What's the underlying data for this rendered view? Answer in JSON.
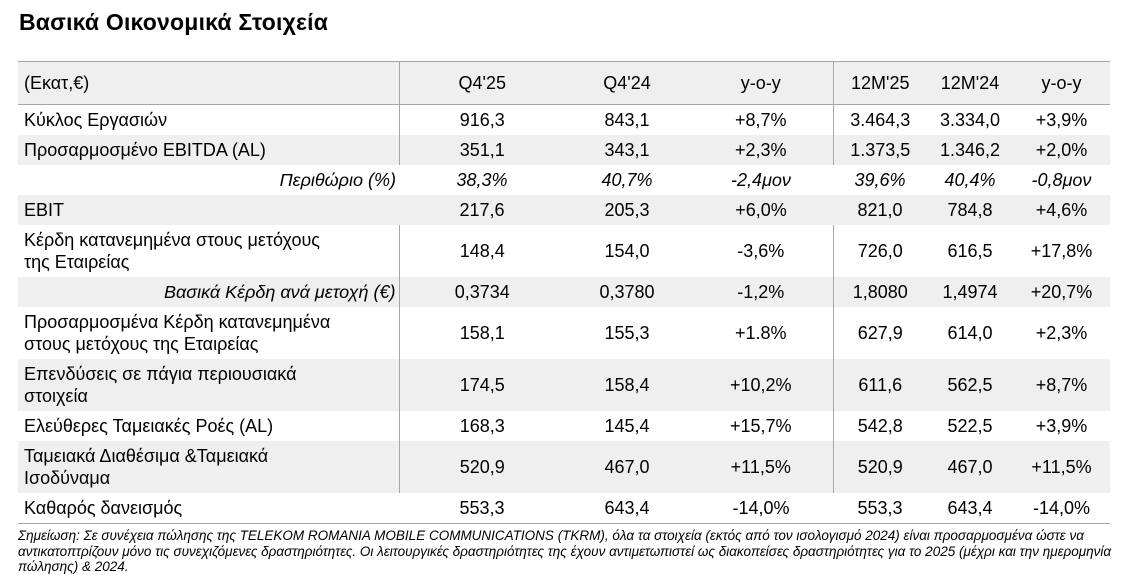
{
  "page_title": "Βασικά Οικονομικά Στοιχεία",
  "table": {
    "unit_label": "(Εκατ,€)",
    "columns": [
      "Q4'25",
      "Q4'24",
      "y-o-y",
      "12M'25",
      "12M'24",
      "y-o-y"
    ],
    "rows": [
      {
        "label": "Κύκλος Εργασιών",
        "values": [
          "916,3",
          "843,1",
          "+8,7%",
          "3.464,3",
          "3.334,0",
          "+3,9%"
        ]
      },
      {
        "label": "Προσαρμοσμένο EBITDA (AL)",
        "values": [
          "351,1",
          "343,1",
          "+2,3%",
          "1.373,5",
          "1.346,2",
          "+2,0%"
        ]
      },
      {
        "label": "Περιθώριο (%)",
        "sub": true,
        "italic_values": true,
        "dividers": false,
        "values": [
          "38,3%",
          "40,7%",
          "-2,4μον",
          "39,6%",
          "40,4%",
          "-0,8μον"
        ]
      },
      {
        "label": "EBIT",
        "dividers": false,
        "values": [
          "217,6",
          "205,3",
          "+6,0%",
          "821,0",
          "784,8",
          "+4,6%"
        ]
      },
      {
        "label": "Κέρδη κατανεμημένα στους μετόχους της Εταιρείας",
        "values": [
          "148,4",
          "154,0",
          "-3,6%",
          "726,0",
          "616,5",
          "+17,8%"
        ]
      },
      {
        "label": "Βασικά Κέρδη ανά μετοχή (€)",
        "sub": true,
        "values": [
          "0,3734",
          "0,3780",
          "-1,2%",
          "1,8080",
          "1,4974",
          "+20,7%"
        ]
      },
      {
        "label": "Προσαρμοσμένα Κέρδη κατανεμημένα στους μετόχους της Εταιρείας",
        "values": [
          "158,1",
          "155,3",
          "+1.8%",
          "627,9",
          "614,0",
          "+2,3%"
        ]
      },
      {
        "label": "Επενδύσεις σε πάγια περιουσιακά στοιχεία",
        "values": [
          "174,5",
          "158,4",
          "+10,2%",
          "611,6",
          "562,5",
          "+8,7%"
        ]
      },
      {
        "label": "Ελεύθερες Ταμειακές Ροές (AL)",
        "values": [
          "168,3",
          "145,4",
          "+15,7%",
          "542,8",
          "522,5",
          "+3,9%"
        ]
      },
      {
        "label": "Ταμειακά Διαθέσιμα &Ταμειακά Ισοδύναμα",
        "values": [
          "520,9",
          "467,0",
          "+11,5%",
          "520,9",
          "467,0",
          "+11,5%"
        ]
      },
      {
        "label": "Καθαρός δανεισμός",
        "dividers": false,
        "values": [
          "553,3",
          "643,4",
          "-14,0%",
          "553,3",
          "643,4",
          "-14,0%"
        ]
      }
    ]
  },
  "footnote": "Σημείωση: Σε συνέχεια πώλησης της TELEKOM ROMANIA MOBILE COMMUNICATIONS (TKRM), όλα τα στοιχεία (εκτός από τον ισολογισμό 2024) είναι προσαρμοσμένα ώστε να αντικατοπτρίζουν μόνο τις συνεχιζόμενες δραστηριότητες. Οι λειτουργικές δραστηριότητες της έχουν αντιμετωπιστεί ως διακοπείσες δραστηριότητες  για το 2025 (μέχρι και την ημερομηνία πώλησης) & 2024.",
  "colors": {
    "stripe": "#efefef",
    "border": "#a6a6a6",
    "text": "#000000",
    "background": "#ffffff"
  }
}
